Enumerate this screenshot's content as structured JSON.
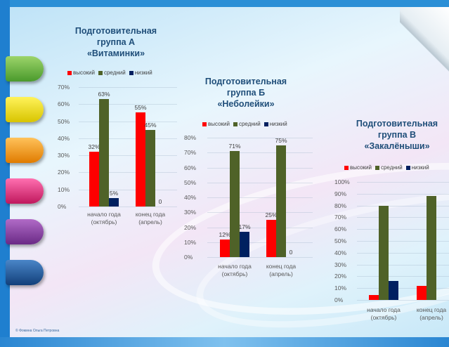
{
  "footer": {
    "note": "© Фомина Ольга Петровна"
  },
  "colors": {
    "high": "#ff0000",
    "mid": "#4f6228",
    "low": "#002060"
  },
  "chart_data": [
    {
      "type": "bar",
      "title": [
        "Подготовительная",
        "группа А",
        "«Витаминки»"
      ],
      "legend": [
        "высокий",
        "средний",
        "низкий"
      ],
      "categories": [
        [
          "начало года",
          "(октябрь)"
        ],
        [
          "конец года",
          "(апрель)"
        ]
      ],
      "series": [
        {
          "name": "высокий",
          "values": [
            32,
            55
          ],
          "labels": [
            "32%",
            "55%"
          ]
        },
        {
          "name": "средний",
          "values": [
            63,
            45
          ],
          "labels": [
            "63%",
            "45%"
          ]
        },
        {
          "name": "низкий",
          "values": [
            5,
            0
          ],
          "labels": [
            "5%",
            "0"
          ]
        }
      ],
      "yticks": [
        "0%",
        "10%",
        "20%",
        "30%",
        "40%",
        "50%",
        "60%",
        "70%"
      ],
      "ylim": [
        0,
        70
      ]
    },
    {
      "type": "bar",
      "title": [
        "Подготовительная",
        "группа Б",
        "«Неболейки»"
      ],
      "legend": [
        "высокий",
        "средний",
        "низкий"
      ],
      "categories": [
        [
          "начало года",
          "(октябрь)"
        ],
        [
          "конец года",
          "(апрель)"
        ]
      ],
      "series": [
        {
          "name": "высокий",
          "values": [
            12,
            25
          ],
          "labels": [
            "12%",
            "25%"
          ]
        },
        {
          "name": "средний",
          "values": [
            71,
            75
          ],
          "labels": [
            "71%",
            "75%"
          ]
        },
        {
          "name": "низкий",
          "values": [
            17,
            0
          ],
          "labels": [
            "17%",
            "0"
          ]
        }
      ],
      "yticks": [
        "0%",
        "10%",
        "20%",
        "30%",
        "40%",
        "50%",
        "60%",
        "70%",
        "80%"
      ],
      "ylim": [
        0,
        80
      ]
    },
    {
      "type": "bar",
      "title": [
        "Подготовительная",
        "группа В",
        "«Закалёныши»"
      ],
      "legend": [
        "высокий",
        "средний",
        "низкий"
      ],
      "categories": [
        [
          "начало года",
          "(октябрь)"
        ],
        [
          "конец года",
          "(апрель)"
        ]
      ],
      "series": [
        {
          "name": "высокий",
          "values": [
            4,
            12
          ],
          "labels": [
            "",
            ""
          ]
        },
        {
          "name": "средний",
          "values": [
            80,
            88
          ],
          "labels": [
            "",
            ""
          ]
        },
        {
          "name": "низкий",
          "values": [
            16,
            0
          ],
          "labels": [
            "",
            ""
          ]
        }
      ],
      "yticks": [
        "0%",
        "10%",
        "20%",
        "30%",
        "40%",
        "50%",
        "60%",
        "70%",
        "80%",
        "90%",
        "100%"
      ],
      "ylim": [
        0,
        100
      ]
    }
  ]
}
